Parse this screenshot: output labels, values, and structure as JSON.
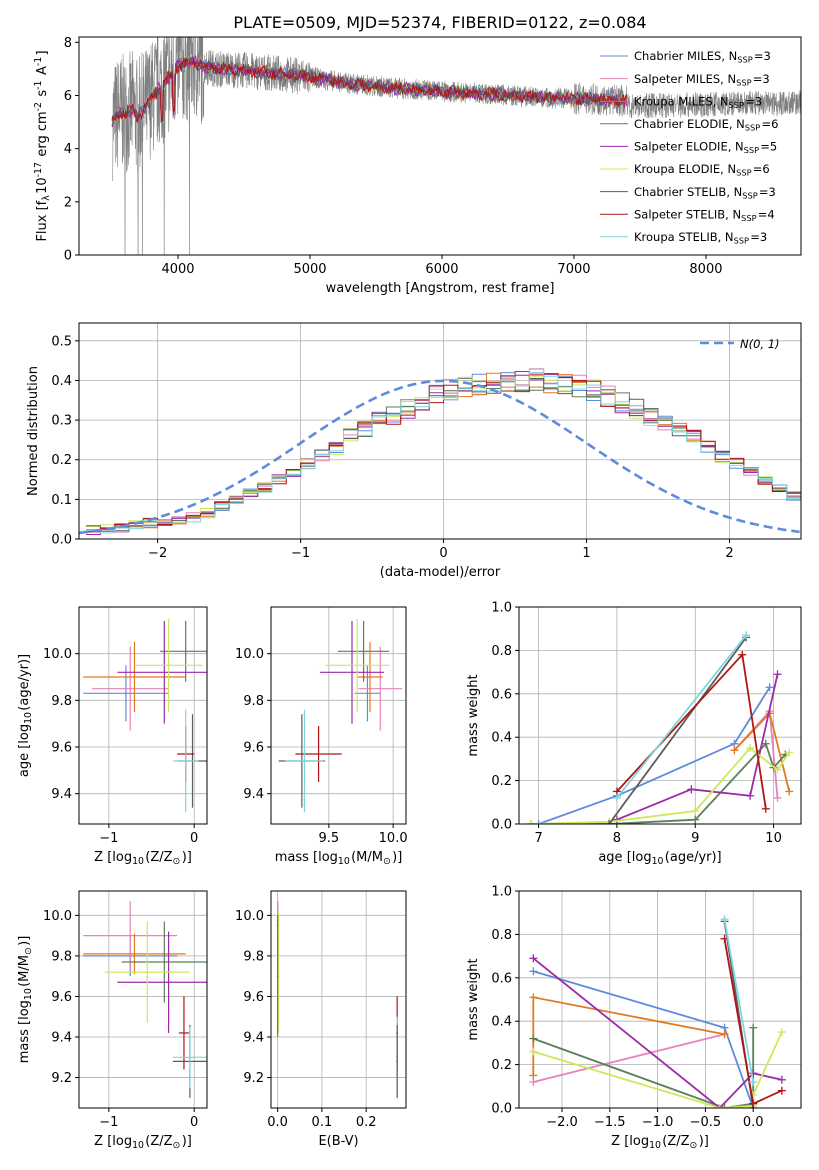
{
  "figure": {
    "title": "PLATE=0509, MJD=52374, FIBERID=0122, z=0.084"
  },
  "colors": {
    "chabrier_miles": "#5f8bdc",
    "salpeter_miles": "#e683b8",
    "kroupa_miles": "#e47a1f",
    "chabrier_elodie": "#5a7f5a",
    "salpeter_elodie": "#9b2aa8",
    "kroupa_elodie": "#cde85a",
    "chabrier_stelib": "#5c5c5c",
    "salpeter_stelib": "#b01515",
    "kroupa_stelib": "#7fd6dd",
    "data_spectrum": "#808080",
    "normal_curve": "#5f8bdc"
  },
  "chart_data": [
    {
      "id": "spectrum",
      "type": "line",
      "xlabel": "wavelength [Angstrom, rest frame]",
      "ylabel": "Flux [f$_{\\lambda}$10$^{-17}$ erg cm$^{-2}$ s$^{-1}$ A$^{-1}$]",
      "xlim": [
        3250,
        8720
      ],
      "ylim": [
        0,
        8.2
      ],
      "xticks": [
        4000,
        5000,
        6000,
        7000,
        8000
      ],
      "yticks": [
        0,
        2,
        4,
        6,
        8
      ],
      "grid": false,
      "legend_position": "top-right",
      "series": [
        {
          "name": "Chabrier MILES, N$_{SSP}$=3",
          "color": "#5f8bdc"
        },
        {
          "name": "Salpeter MILES, N$_{SSP}$=3",
          "color": "#e683b8"
        },
        {
          "name": "Kroupa MILES, N$_{SSP}$=3",
          "color": "#e47a1f"
        },
        {
          "name": "Chabrier ELODIE, N$_{SSP}$=6",
          "color": "#5a7f5a"
        },
        {
          "name": "Salpeter ELODIE, N$_{SSP}$=5",
          "color": "#9b2aa8"
        },
        {
          "name": "Kroupa ELODIE, N$_{SSP}$=6",
          "color": "#cde85a"
        },
        {
          "name": "Chabrier STELIB, N$_{SSP}$=3",
          "color": "#5c5c5c"
        },
        {
          "name": "Salpeter STELIB, N$_{SSP}$=4",
          "color": "#b01515"
        },
        {
          "name": "Kroupa STELIB, N$_{SSP}$=3",
          "color": "#7fd6dd"
        }
      ],
      "model_continuum": {
        "x": [
          3500,
          3560,
          3600,
          3650,
          3700,
          3800,
          3900,
          4000,
          4100,
          4200,
          4300,
          4500,
          4700,
          5000,
          5300,
          5600,
          6000,
          6400,
          6800,
          7000,
          7200,
          7400
        ],
        "y": [
          5.0,
          5.4,
          5.3,
          5.5,
          5.2,
          5.9,
          6.5,
          7.1,
          7.3,
          7.1,
          7.0,
          6.95,
          6.85,
          6.7,
          6.45,
          6.3,
          6.15,
          6.05,
          5.9,
          5.9,
          5.85,
          5.8
        ]
      }
    },
    {
      "id": "residuals",
      "type": "line",
      "xlabel": "(data-model)/error",
      "ylabel": "Normed distribution",
      "xlim": [
        -2.55,
        2.5
      ],
      "ylim": [
        0,
        0.545
      ],
      "xticks": [
        -2,
        -1,
        0,
        1,
        2
      ],
      "yticks": [
        0.0,
        0.1,
        0.2,
        0.3,
        0.4,
        0.5
      ],
      "grid": true,
      "legend_position": "top-right",
      "normal_curve": {
        "name": "$\\mathcal{N}(0,1)$",
        "mean": 0,
        "sigma": 1
      },
      "bin_width": 0.1,
      "hist_start": -2.5,
      "histogram_envelope": [
        0.022,
        0.024,
        0.028,
        0.035,
        0.04,
        0.044,
        0.05,
        0.055,
        0.065,
        0.082,
        0.1,
        0.115,
        0.13,
        0.15,
        0.17,
        0.19,
        0.21,
        0.23,
        0.26,
        0.28,
        0.3,
        0.31,
        0.33,
        0.345,
        0.36,
        0.375,
        0.385,
        0.39,
        0.395,
        0.4,
        0.4,
        0.4,
        0.398,
        0.392,
        0.385,
        0.375,
        0.36,
        0.345,
        0.33,
        0.31,
        0.295,
        0.275,
        0.255,
        0.23,
        0.21,
        0.19,
        0.17,
        0.15,
        0.13,
        0.11,
        0.1,
        0.085,
        0.07,
        0.06,
        0.05,
        0.045,
        0.038,
        0.032,
        0.028,
        0.024,
        0.02,
        0.02
      ]
    },
    {
      "id": "Z-age",
      "type": "scatter",
      "xlabel": "Z [log$_{10}$(Z/Z$_{\\odot}$)]",
      "ylabel": "age  [log$_{10}$(age/yr)]",
      "xlim": [
        -1.35,
        0.15
      ],
      "ylim": [
        9.27,
        10.2
      ],
      "xticks": [
        -1,
        0
      ],
      "yticks": [
        9.4,
        9.6,
        9.8,
        10.0
      ],
      "grid": true,
      "points": [
        {
          "series": "Chabrier MILES",
          "x": -0.8,
          "y": 9.83,
          "xerr": 0.5,
          "yerr": 0.12,
          "color": "#5f8bdc"
        },
        {
          "series": "Salpeter MILES",
          "x": -0.75,
          "y": 9.85,
          "xerr": 0.45,
          "yerr": 0.18,
          "color": "#e683b8"
        },
        {
          "series": "Kroupa MILES",
          "x": -0.7,
          "y": 9.9,
          "xerr": 0.6,
          "yerr": 0.15,
          "color": "#e47a1f"
        },
        {
          "series": "Chabrier ELODIE",
          "x": -0.1,
          "y": 10.01,
          "xerr": 0.3,
          "yerr": 0.13,
          "color": "#5a7f5a"
        },
        {
          "series": "Salpeter ELODIE",
          "x": -0.35,
          "y": 9.92,
          "xerr": 0.55,
          "yerr": 0.22,
          "color": "#9b2aa8"
        },
        {
          "series": "Kroupa ELODIE",
          "x": -0.3,
          "y": 9.95,
          "xerr": 0.4,
          "yerr": 0.2,
          "color": "#cde85a"
        },
        {
          "series": "Chabrier STELIB",
          "x": -0.02,
          "y": 9.54,
          "xerr": 0.18,
          "yerr": 0.2,
          "color": "#5c5c5c"
        },
        {
          "series": "Salpeter STELIB",
          "x": -0.1,
          "y": 9.57,
          "xerr": 0.1,
          "yerr": 0.12,
          "color": "#b01515"
        },
        {
          "series": "Kroupa STELIB",
          "x": -0.1,
          "y": 9.54,
          "xerr": 0.15,
          "yerr": 0.22,
          "color": "#7fd6dd"
        }
      ]
    },
    {
      "id": "mass-age",
      "type": "scatter",
      "xlabel": "mass [log$_{10}$(M/M$_{\\odot}$)]",
      "ylabel": "",
      "xlim": [
        9.05,
        10.1
      ],
      "ylim": [
        9.27,
        10.2
      ],
      "xticks": [
        9.5,
        10.0
      ],
      "yticks": [
        9.4,
        9.6,
        9.8,
        10.0
      ],
      "grid": true,
      "points": [
        {
          "series": "Chabrier MILES",
          "x": 9.8,
          "y": 9.83,
          "xerr": 0.1,
          "yerr": 0.12,
          "color": "#5f8bdc"
        },
        {
          "series": "Salpeter MILES",
          "x": 9.9,
          "y": 9.85,
          "xerr": 0.17,
          "yerr": 0.18,
          "color": "#e683b8"
        },
        {
          "series": "Kroupa MILES",
          "x": 9.82,
          "y": 9.9,
          "xerr": 0.1,
          "yerr": 0.15,
          "color": "#e47a1f"
        },
        {
          "series": "Chabrier ELODIE",
          "x": 9.77,
          "y": 10.01,
          "xerr": 0.2,
          "yerr": 0.13,
          "color": "#5a7f5a"
        },
        {
          "series": "Salpeter ELODIE",
          "x": 9.68,
          "y": 9.92,
          "xerr": 0.25,
          "yerr": 0.22,
          "color": "#9b2aa8"
        },
        {
          "series": "Kroupa ELODIE",
          "x": 9.72,
          "y": 9.95,
          "xerr": 0.25,
          "yerr": 0.2,
          "color": "#cde85a"
        },
        {
          "series": "Chabrier STELIB",
          "x": 9.29,
          "y": 9.54,
          "xerr": 0.18,
          "yerr": 0.2,
          "color": "#5c5c5c"
        },
        {
          "series": "Salpeter STELIB",
          "x": 9.42,
          "y": 9.57,
          "xerr": 0.18,
          "yerr": 0.12,
          "color": "#b01515"
        },
        {
          "series": "Kroupa STELIB",
          "x": 9.31,
          "y": 9.54,
          "xerr": 0.15,
          "yerr": 0.22,
          "color": "#7fd6dd"
        }
      ]
    },
    {
      "id": "age-weight",
      "type": "line",
      "xlabel": "age  [log$_{10}$(age/yr)]",
      "ylabel": "mass weight",
      "xlim": [
        6.75,
        10.35
      ],
      "ylim": [
        0,
        1.0
      ],
      "xticks": [
        7,
        8,
        9,
        10
      ],
      "yticks": [
        0.0,
        0.2,
        0.4,
        0.6,
        0.8,
        1.0
      ],
      "grid": true,
      "series": [
        {
          "name": "Chabrier MILES",
          "color": "#5f8bdc",
          "x": [
            7.0,
            8.0,
            9.5,
            9.95
          ],
          "y": [
            0.0,
            0.13,
            0.37,
            0.63
          ]
        },
        {
          "name": "Salpeter MILES",
          "color": "#e683b8",
          "x": [
            9.5,
            9.95,
            10.05
          ],
          "y": [
            0.34,
            0.52,
            0.12
          ]
        },
        {
          "name": "Kroupa MILES",
          "color": "#e47a1f",
          "x": [
            9.5,
            9.95,
            10.2
          ],
          "y": [
            0.34,
            0.51,
            0.15
          ]
        },
        {
          "name": "Chabrier ELODIE",
          "color": "#5a7f5a",
          "x": [
            6.9,
            7.9,
            9.0,
            9.9,
            10.0,
            10.15
          ],
          "y": [
            0.0,
            0.0,
            0.02,
            0.37,
            0.26,
            0.32
          ]
        },
        {
          "name": "Salpeter ELODIE",
          "color": "#9b2aa8",
          "x": [
            8.0,
            8.95,
            9.7,
            10.05
          ],
          "y": [
            0.02,
            0.16,
            0.13,
            0.69
          ]
        },
        {
          "name": "Kroupa ELODIE",
          "color": "#cde85a",
          "x": [
            6.9,
            7.9,
            9.0,
            9.7,
            10.05,
            10.2
          ],
          "y": [
            0.0,
            0.01,
            0.06,
            0.35,
            0.25,
            0.33
          ]
        },
        {
          "name": "Chabrier STELIB",
          "color": "#5c5c5c",
          "x": [
            7.9,
            9.65
          ],
          "y": [
            0.0,
            0.86
          ]
        },
        {
          "name": "Salpeter STELIB",
          "color": "#b01515",
          "x": [
            8.0,
            9.6,
            9.9
          ],
          "y": [
            0.15,
            0.78,
            0.07
          ]
        },
        {
          "name": "Kroupa STELIB",
          "color": "#7fd6dd",
          "x": [
            8.0,
            9.65
          ],
          "y": [
            0.12,
            0.87
          ]
        }
      ]
    },
    {
      "id": "Z-mass",
      "type": "scatter",
      "xlabel": "Z [log$_{10}$(Z/Z$_{\\odot}$)]",
      "ylabel": "mass [log$_{10}$(M/M$_{\\odot}$)]",
      "xlim": [
        -1.35,
        0.15
      ],
      "ylim": [
        9.05,
        10.12
      ],
      "xticks": [
        -1,
        0
      ],
      "yticks": [
        9.2,
        9.4,
        9.6,
        9.8,
        10.0
      ],
      "grid": true,
      "points": [
        {
          "series": "Chabrier MILES",
          "x": -0.75,
          "y": 9.8,
          "xerr": 0.55,
          "yerr": 0.1,
          "color": "#5f8bdc"
        },
        {
          "series": "Salpeter MILES",
          "x": -0.75,
          "y": 9.9,
          "xerr": 0.55,
          "yerr": 0.17,
          "color": "#e683b8"
        },
        {
          "series": "Kroupa MILES",
          "x": -0.7,
          "y": 9.81,
          "xerr": 0.6,
          "yerr": 0.1,
          "color": "#e47a1f"
        },
        {
          "series": "Chabrier ELODIE",
          "x": -0.35,
          "y": 9.77,
          "xerr": 0.5,
          "yerr": 0.2,
          "color": "#5a7f5a"
        },
        {
          "series": "Salpeter ELODIE",
          "x": -0.3,
          "y": 9.67,
          "xerr": 0.6,
          "yerr": 0.25,
          "color": "#9b2aa8"
        },
        {
          "series": "Kroupa ELODIE",
          "x": -0.55,
          "y": 9.72,
          "xerr": 0.5,
          "yerr": 0.25,
          "color": "#cde85a"
        },
        {
          "series": "Chabrier STELIB",
          "x": -0.05,
          "y": 9.28,
          "xerr": 0.2,
          "yerr": 0.18,
          "color": "#5c5c5c"
        },
        {
          "series": "Salpeter STELIB",
          "x": -0.12,
          "y": 9.42,
          "xerr": 0.06,
          "yerr": 0.18,
          "color": "#b01515"
        },
        {
          "series": "Kroupa STELIB",
          "x": -0.05,
          "y": 9.3,
          "xerr": 0.2,
          "yerr": 0.15,
          "color": "#7fd6dd"
        }
      ]
    },
    {
      "id": "ebv-mass",
      "type": "scatter",
      "xlabel": "E(B-V)",
      "ylabel": "",
      "xlim": [
        -0.015,
        0.29
      ],
      "ylim": [
        9.05,
        10.12
      ],
      "xticks": [
        0.0,
        0.1,
        0.2
      ],
      "yticks": [
        9.2,
        9.4,
        9.6,
        9.8,
        10.0
      ],
      "grid": true,
      "points": [
        {
          "series": "Salpeter ELODIE",
          "x": 0.0,
          "y": 9.95,
          "xerr": 0.002,
          "yerr": 0.12,
          "color": "#9b2aa8"
        },
        {
          "series": "Salpeter MILES",
          "x": 0.0,
          "y": 9.9,
          "xerr": 0.002,
          "yerr": 0.17,
          "color": "#e683b8"
        },
        {
          "series": "Kroupa ELODIE",
          "x": 0.002,
          "y": 9.72,
          "xerr": 0.002,
          "yerr": 0.3,
          "color": "#cde85a"
        },
        {
          "series": "Chabrier ELODIE",
          "x": 0.0,
          "y": 9.7,
          "xerr": 0.002,
          "yerr": 0.3,
          "color": "#5a7f5a"
        },
        {
          "series": "Salpeter STELIB",
          "x": 0.27,
          "y": 9.42,
          "xerr": 0.002,
          "yerr": 0.18,
          "color": "#b01515"
        },
        {
          "series": "Kroupa STELIB",
          "x": 0.27,
          "y": 9.3,
          "xerr": 0.002,
          "yerr": 0.2,
          "color": "#7fd6dd"
        },
        {
          "series": "Chabrier STELIB",
          "x": 0.27,
          "y": 9.28,
          "xerr": 0.002,
          "yerr": 0.18,
          "color": "#5c5c5c"
        }
      ]
    },
    {
      "id": "Z-weight",
      "type": "line",
      "xlabel": "Z [log$_{10}$(Z/Z$_{\\odot}$)]",
      "ylabel": "mass weight",
      "xlim": [
        -2.45,
        0.5
      ],
      "ylim": [
        0,
        1.0
      ],
      "xticks": [
        -2.0,
        -1.5,
        -1.0,
        -0.5,
        0.0
      ],
      "yticks": [
        0.0,
        0.2,
        0.4,
        0.6,
        0.8,
        1.0
      ],
      "grid": true,
      "series": [
        {
          "name": "Chabrier MILES",
          "color": "#5f8bdc",
          "x": [
            -2.3,
            -0.3,
            0.0
          ],
          "y": [
            0.63,
            0.37,
            0.0
          ]
        },
        {
          "name": "Salpeter MILES",
          "color": "#e683b8",
          "x": [
            -2.3,
            -0.3
          ],
          "y": [
            0.12,
            0.34
          ]
        },
        {
          "name": "Kroupa MILES",
          "color": "#e47a1f",
          "x": [
            -2.3,
            -2.3,
            -0.3
          ],
          "y": [
            0.15,
            0.51,
            0.34
          ]
        },
        {
          "name": "Chabrier ELODIE",
          "color": "#5a7f5a",
          "x": [
            -2.3,
            -0.3,
            0.0,
            0.0
          ],
          "y": [
            0.32,
            0.0,
            0.02,
            0.37
          ]
        },
        {
          "name": "Salpeter ELODIE",
          "color": "#9b2aa8",
          "x": [
            -2.3,
            -0.35,
            0.0,
            0.3
          ],
          "y": [
            0.69,
            0.0,
            0.16,
            0.13
          ]
        },
        {
          "name": "Kroupa ELODIE",
          "color": "#cde85a",
          "x": [
            -2.3,
            -0.35,
            0.0,
            0.0,
            0.3
          ],
          "y": [
            0.26,
            0.0,
            0.01,
            0.06,
            0.35
          ]
        },
        {
          "name": "Chabrier STELIB",
          "color": "#5c5c5c",
          "x": [
            -0.3,
            0.0
          ],
          "y": [
            0.86,
            0.0
          ]
        },
        {
          "name": "Salpeter STELIB",
          "color": "#b01515",
          "x": [
            -0.3,
            0.0,
            0.3
          ],
          "y": [
            0.78,
            0.02,
            0.08
          ]
        },
        {
          "name": "Kroupa STELIB",
          "color": "#7fd6dd",
          "x": [
            -0.3,
            0.0
          ],
          "y": [
            0.87,
            0.12
          ]
        }
      ]
    }
  ]
}
